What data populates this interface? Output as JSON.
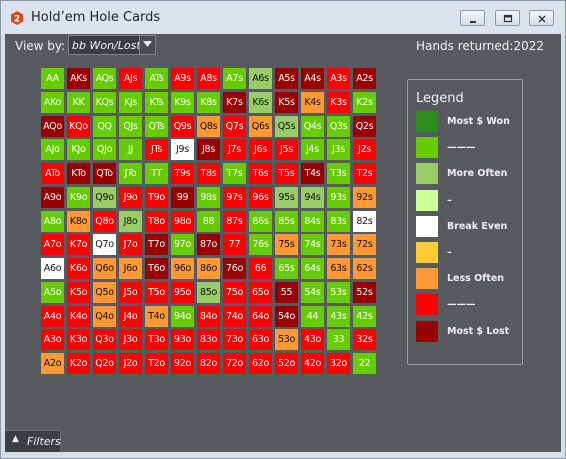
{
  "window": {
    "title": "Hold’em Hole Cards",
    "icon": "app-logo-icon",
    "controls": [
      "minimize-icon",
      "maximize-icon",
      "close-icon"
    ]
  },
  "toolbar": {
    "view_by_label": "View by:",
    "view_by_value": "bb Won/Lost",
    "hands_returned_label": "Hands returned:",
    "hands_returned_value": "2022"
  },
  "colors": {
    "dark_green": "#2e8b1e",
    "green": "#66cc00",
    "light_green": "#99cc66",
    "pale_green": "#ccff99",
    "white": "#ffffff",
    "yellow": "#ffcc33",
    "orange": "#ff9933",
    "red": "#ff0000",
    "dark_red": "#990000"
  },
  "grid": [
    [
      "AA",
      "AKs",
      "AQs",
      "AJs",
      "ATs",
      "A9s",
      "A8s",
      "A7s",
      "A6s",
      "A5s",
      "A4s",
      "A3s",
      "A2s"
    ],
    [
      "AKo",
      "KK",
      "KQs",
      "KJs",
      "KTs",
      "K9s",
      "K8s",
      "K7s",
      "K6s",
      "K5s",
      "K4s",
      "K3s",
      "K2s"
    ],
    [
      "AQo",
      "KQo",
      "QQ",
      "QJs",
      "QTs",
      "Q9s",
      "Q8s",
      "Q7s",
      "Q6s",
      "Q5s",
      "Q4s",
      "Q3s",
      "Q2s"
    ],
    [
      "AJo",
      "KJo",
      "QJo",
      "JJ",
      "JTs",
      "J9s",
      "J8s",
      "J7s",
      "J6s",
      "J5s",
      "J4s",
      "J3s",
      "J2s"
    ],
    [
      "ATo",
      "KTo",
      "QTo",
      "JTo",
      "TT",
      "T9s",
      "T8s",
      "T7s",
      "T6s",
      "T5s",
      "T4s",
      "T3s",
      "T2s"
    ],
    [
      "A9o",
      "K9o",
      "Q9o",
      "J9o",
      "T9o",
      "99",
      "98s",
      "97s",
      "96s",
      "95s",
      "94s",
      "93s",
      "92s"
    ],
    [
      "A8o",
      "K8o",
      "Q8o",
      "J8o",
      "T8o",
      "98o",
      "88",
      "87s",
      "86s",
      "85s",
      "84s",
      "83s",
      "82s"
    ],
    [
      "A7o",
      "K7o",
      "Q7o",
      "J7o",
      "T7o",
      "97o",
      "87o",
      "77",
      "76s",
      "75s",
      "74s",
      "73s",
      "72s"
    ],
    [
      "A6o",
      "K6o",
      "Q6o",
      "J6o",
      "T6o",
      "96o",
      "86o",
      "76o",
      "66",
      "65s",
      "64s",
      "63s",
      "62s"
    ],
    [
      "A5o",
      "K5o",
      "Q5o",
      "J5o",
      "T5o",
      "95o",
      "85o",
      "75o",
      "65o",
      "55",
      "54s",
      "53s",
      "52s"
    ],
    [
      "A4o",
      "K4o",
      "Q4o",
      "J4o",
      "T4o",
      "94o",
      "84o",
      "74o",
      "64o",
      "54o",
      "44",
      "43s",
      "42s"
    ],
    [
      "A3o",
      "K3o",
      "Q3o",
      "J3o",
      "T3o",
      "93o",
      "83o",
      "73o",
      "63o",
      "53o",
      "43o",
      "33",
      "32s"
    ],
    [
      "A2o",
      "K2o",
      "Q2o",
      "J2o",
      "T2o",
      "92o",
      "82o",
      "72o",
      "62o",
      "52o",
      "42o",
      "32o",
      "22"
    ]
  ],
  "grid_levels": [
    [
      "G",
      "DR",
      "G",
      "R",
      "G",
      "R",
      "R",
      "G",
      "LG",
      "DR",
      "DR",
      "R",
      "DR"
    ],
    [
      "G",
      "G",
      "G",
      "G",
      "G",
      "G",
      "G",
      "DR",
      "LG",
      "DR",
      "O",
      "R",
      "G"
    ],
    [
      "DR",
      "R",
      "G",
      "G",
      "G",
      "R",
      "O",
      "R",
      "O",
      "LG",
      "G",
      "G",
      "DR"
    ],
    [
      "G",
      "G",
      "G",
      "G",
      "R",
      "W",
      "DR",
      "R",
      "R",
      "R",
      "G",
      "G",
      "R"
    ],
    [
      "R",
      "DR",
      "DR",
      "G",
      "G",
      "R",
      "R",
      "G",
      "R",
      "R",
      "DR",
      "G",
      "R"
    ],
    [
      "DR",
      "G",
      "LG",
      "R",
      "R",
      "DR",
      "G",
      "R",
      "R",
      "LG",
      "LG",
      "G",
      "O"
    ],
    [
      "G",
      "O",
      "R",
      "LG",
      "R",
      "R",
      "G",
      "R",
      "G",
      "G",
      "G",
      "G",
      "W"
    ],
    [
      "R",
      "R",
      "W",
      "R",
      "DR",
      "G",
      "DR",
      "R",
      "G",
      "O",
      "G",
      "O",
      "O"
    ],
    [
      "W",
      "R",
      "O",
      "O",
      "DR",
      "O",
      "O",
      "DR",
      "R",
      "G",
      "G",
      "O",
      "O"
    ],
    [
      "G",
      "R",
      "O",
      "R",
      "R",
      "R",
      "LG",
      "R",
      "R",
      "DR",
      "G",
      "G",
      "DR"
    ],
    [
      "R",
      "R",
      "O",
      "R",
      "O",
      "G",
      "R",
      "R",
      "R",
      "DR",
      "G",
      "G",
      "G"
    ],
    [
      "R",
      "R",
      "R",
      "R",
      "R",
      "R",
      "R",
      "R",
      "R",
      "O",
      "R",
      "G",
      "R"
    ],
    [
      "O",
      "R",
      "R",
      "R",
      "R",
      "R",
      "R",
      "R",
      "R",
      "R",
      "R",
      "R",
      "G"
    ]
  ],
  "legend": {
    "title": "Legend",
    "items": [
      {
        "label": "Most $ Won",
        "color": "#2e8b1e"
      },
      {
        "label": "———",
        "color": "#66cc00"
      },
      {
        "label": "More Often",
        "color": "#99cc66"
      },
      {
        "label": "–",
        "color": "#ccff99"
      },
      {
        "label": "Break Even",
        "color": "#ffffff"
      },
      {
        "label": "–",
        "color": "#ffcc33"
      },
      {
        "label": "Less Often",
        "color": "#ff9933"
      },
      {
        "label": "———",
        "color": "#ff0000"
      },
      {
        "label": "Most $ Lost",
        "color": "#990000"
      }
    ]
  },
  "filters": {
    "label": "Filters",
    "caret_icon": "caret-up-icon"
  }
}
